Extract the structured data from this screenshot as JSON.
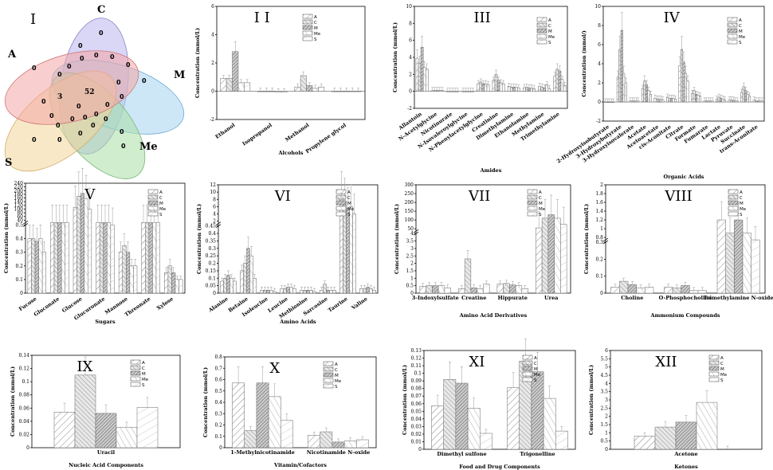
{
  "patterns": [
    "pa",
    "pc",
    "pm",
    "pme",
    "ps"
  ],
  "legend": [
    "A",
    "C",
    "M",
    "Me",
    "S"
  ],
  "venn": {
    "numeral": "I",
    "sets": [
      {
        "name": "A",
        "color": "#f4a6a6"
      },
      {
        "name": "C",
        "color": "#b9b4ee"
      },
      {
        "name": "M",
        "color": "#a6d3f0"
      },
      {
        "name": "Me",
        "color": "#a9dfa6"
      },
      {
        "name": "S",
        "color": "#f3d59a"
      }
    ],
    "center": "52",
    "three": "3",
    "zero": "0"
  },
  "chart_data": [
    {
      "id": "II",
      "type": "bar",
      "numeral": "I I",
      "xlabel": "Alcohols",
      "ylabel": "Concentration (mmol/L)",
      "ylim": [
        -2,
        6
      ],
      "yticks": [
        -2,
        0,
        2,
        4,
        6
      ],
      "categories": [
        "Ethanol",
        "Isopropanol",
        "Methanol",
        "Propylene glycol"
      ],
      "series": [
        {
          "name": "A",
          "values": [
            0.9,
            0.0,
            0.3,
            0.0
          ]
        },
        {
          "name": "C",
          "values": [
            0.9,
            0.0,
            1.1,
            0.0
          ]
        },
        {
          "name": "M",
          "values": [
            2.8,
            0.0,
            0.4,
            0.0
          ]
        },
        {
          "name": "Me",
          "values": [
            0.6,
            -0.05,
            0.2,
            0.0
          ]
        },
        {
          "name": "S",
          "values": [
            0.6,
            -0.05,
            0.3,
            0.0
          ]
        }
      ]
    },
    {
      "id": "III",
      "type": "bar",
      "numeral": "III",
      "xlabel": "Amides",
      "ylabel": "Concentration (mmol/L)",
      "ylim": [
        -2,
        10
      ],
      "yticks": [
        -2,
        0,
        2,
        4,
        6,
        8,
        10
      ],
      "categories": [
        "Allantoin",
        "N-Acetylglycine",
        "Nicotinurate",
        "N-Isovaleroylglycine",
        "N-Phenylacetylglycine",
        "Creatinine",
        "Dimethylamine",
        "Ethanolamine",
        "Methylamine",
        "Trimethylamine"
      ],
      "series": [
        {
          "name": "A",
          "values": [
            3.9,
            0.1,
            0.0,
            0.0,
            0.9,
            1.3,
            0.6,
            0.4,
            0.6,
            1.8
          ]
        },
        {
          "name": "C",
          "values": [
            3.3,
            0.1,
            0.0,
            0.0,
            1.1,
            2.0,
            0.5,
            0.5,
            0.5,
            2.6
          ]
        },
        {
          "name": "M",
          "values": [
            5.2,
            0.1,
            0.0,
            0.0,
            0.9,
            1.3,
            0.5,
            0.4,
            0.4,
            2.4
          ]
        },
        {
          "name": "Me",
          "values": [
            2.8,
            0.1,
            0.0,
            0.0,
            0.9,
            1.0,
            0.5,
            0.4,
            0.8,
            1.4
          ]
        },
        {
          "name": "S",
          "values": [
            2.6,
            0.1,
            0.0,
            0.0,
            0.8,
            0.9,
            0.4,
            0.3,
            0.3,
            0.7
          ]
        }
      ]
    },
    {
      "id": "IV",
      "type": "bar",
      "numeral": "IV",
      "xlabel": "Organic Acids",
      "ylabel": "Concentration (mmol/)",
      "ylim": [
        -2,
        10
      ],
      "yticks": [
        -2,
        0,
        2,
        4,
        6,
        8,
        10
      ],
      "categories": [
        "2-Hydroxyisobutyrate",
        "3-Hydroxybutyrate",
        "3-Hydroxyisovalerate",
        "Acetate",
        "Acetoacetate",
        "cis-Aconitate",
        "Citrate",
        "Formate",
        "Fumarate",
        "Lactate",
        "Pyruvate",
        "Succinate",
        "trans-Aconitate"
      ],
      "series": [
        {
          "name": "A",
          "values": [
            0.0,
            2.6,
            0.1,
            1.4,
            0.4,
            0.5,
            3.8,
            0.9,
            0.1,
            0.3,
            0.2,
            1.0,
            0.2
          ]
        },
        {
          "name": "C",
          "values": [
            0.0,
            5.5,
            0.1,
            2.2,
            0.3,
            0.4,
            5.5,
            1.2,
            0.1,
            0.5,
            0.2,
            1.6,
            0.1
          ]
        },
        {
          "name": "M",
          "values": [
            0.0,
            7.5,
            0.1,
            1.8,
            0.3,
            0.4,
            4.2,
            0.8,
            0.1,
            0.4,
            0.2,
            1.2,
            0.1
          ]
        },
        {
          "name": "Me",
          "values": [
            0.0,
            3.0,
            0.1,
            1.2,
            0.3,
            0.4,
            3.0,
            0.7,
            0.1,
            0.3,
            0.1,
            0.8,
            0.1
          ]
        },
        {
          "name": "S",
          "values": [
            0.0,
            2.0,
            0.1,
            0.8,
            0.2,
            0.3,
            2.2,
            0.6,
            0.1,
            0.2,
            0.1,
            0.6,
            0.1
          ]
        }
      ]
    },
    {
      "id": "V",
      "type": "bar",
      "numeral": "V",
      "xlabel": "Sugars",
      "ylabel": "Concentration (mmol/L)",
      "ylim": [
        0,
        240
      ],
      "yticks_upper": [
        40,
        60,
        80,
        100,
        120,
        140,
        160,
        180,
        200,
        220,
        240
      ],
      "yticks_lower": [
        0,
        0.1,
        0.2,
        0.3,
        0.4,
        0.5
      ],
      "categories": [
        "Fucose",
        "Gluconate",
        "Glucose",
        "Glucuronate",
        "Mannose",
        "Threonate",
        "Xylose"
      ],
      "series": [
        {
          "name": "A",
          "values": [
            0.4,
            25,
            110,
            0.75,
            0.3,
            0.95,
            0.15
          ]
        },
        {
          "name": "C",
          "values": [
            0.4,
            25,
            170,
            0.8,
            0.35,
            0.85,
            0.2
          ]
        },
        {
          "name": "M",
          "values": [
            0.38,
            25,
            185,
            1.6,
            0.3,
            0.9,
            0.15
          ]
        },
        {
          "name": "Me",
          "values": [
            0.4,
            25,
            155,
            0.6,
            0.2,
            1.0,
            0.1
          ]
        },
        {
          "name": "S",
          "values": [
            0.3,
            25,
            100,
            0.5,
            0.2,
            0.7,
            0.1
          ]
        }
      ]
    },
    {
      "id": "VI",
      "type": "bar",
      "numeral": "VI",
      "xlabel": "Amino Acids",
      "ylabel": "Concentration (mmol/L)",
      "ylim": [
        0,
        12
      ],
      "yticks_upper": [
        2,
        4,
        6,
        8,
        10,
        12
      ],
      "yticks_lower": [
        0,
        0.05,
        0.1,
        0.15,
        0.2,
        0.25,
        0.3,
        0.35,
        0.4,
        0.45
      ],
      "categories": [
        "Alanine",
        "Betaine",
        "Isoleucine",
        "Leucine",
        "Methionine",
        "Sarcosine",
        "Taurine",
        "Valine"
      ],
      "series": [
        {
          "name": "A",
          "values": [
            0.08,
            0.15,
            0.02,
            0.03,
            0.02,
            0.02,
            9,
            0.03
          ]
        },
        {
          "name": "C",
          "values": [
            0.1,
            0.2,
            0.02,
            0.03,
            0.02,
            0.06,
            7.5,
            0.03
          ]
        },
        {
          "name": "M",
          "values": [
            0.12,
            0.3,
            0.02,
            0.04,
            0.02,
            0.02,
            5.5,
            0.04
          ]
        },
        {
          "name": "Me",
          "values": [
            0.1,
            0.25,
            0.02,
            0.04,
            0.02,
            0.02,
            6,
            0.03
          ]
        },
        {
          "name": "S",
          "values": [
            0.08,
            0.1,
            0.01,
            0.03,
            0.01,
            0.02,
            4,
            0.02
          ]
        }
      ]
    },
    {
      "id": "VII",
      "type": "bar",
      "numeral": "VII",
      "xlabel": "Amino Acid Derivatives",
      "ylabel": "Concentration (mmol/L)",
      "ylim": [
        0,
        300
      ],
      "yticks_upper": [
        50,
        100,
        150,
        200,
        250,
        300
      ],
      "yticks_lower": [
        0,
        0.5,
        1,
        1.5,
        2,
        2.5,
        3,
        3.5,
        4
      ],
      "categories": [
        "3-Indoxylsulfate",
        "Creatine",
        "Hippurate",
        "Urea"
      ],
      "series": [
        {
          "name": "A",
          "values": [
            0.45,
            0.3,
            0.6,
            55
          ]
        },
        {
          "name": "C",
          "values": [
            0.5,
            2.3,
            0.65,
            110
          ]
        },
        {
          "name": "M",
          "values": [
            0.5,
            0.35,
            0.55,
            130
          ]
        },
        {
          "name": "Me",
          "values": [
            0.5,
            0.3,
            0.5,
            110
          ]
        },
        {
          "name": "S",
          "values": [
            0.35,
            0.6,
            0.3,
            75
          ]
        }
      ]
    },
    {
      "id": "VIII",
      "type": "bar",
      "numeral": "VIII",
      "xlabel": "Ammonium Compounds",
      "ylabel": "Concentration (mmol/L)",
      "ylim": [
        0,
        2.0
      ],
      "yticks_upper": [
        0.8,
        1.0,
        1.2,
        1.4,
        1.6,
        1.8,
        2.0
      ],
      "yticks_lower": [
        0,
        0.1,
        0.2,
        0.3
      ],
      "categories": [
        "Choline",
        "O-Phosphocholine",
        "Trimethylamine N-oxide"
      ],
      "series": [
        {
          "name": "A",
          "values": [
            0.035,
            0.035,
            1.2
          ]
        },
        {
          "name": "C",
          "values": [
            0.07,
            0.03,
            0.9
          ]
        },
        {
          "name": "M",
          "values": [
            0.05,
            0.045,
            1.2
          ]
        },
        {
          "name": "Me",
          "values": [
            0.03,
            0.015,
            0.9
          ]
        },
        {
          "name": "S",
          "values": [
            0.035,
            0.015,
            0.7
          ]
        }
      ]
    },
    {
      "id": "IX",
      "type": "bar",
      "numeral": "IX",
      "xlabel": "Nucleic Acid Components",
      "ylabel": "Concentration (mmol/L)",
      "ylim": [
        0,
        0.14
      ],
      "yticks": [
        0,
        0.02,
        0.04,
        0.06,
        0.08,
        0.1,
        0.12,
        0.14
      ],
      "categories": [
        "Uracil"
      ],
      "series": [
        {
          "name": "A",
          "values": [
            0.054
          ]
        },
        {
          "name": "C",
          "values": [
            0.11
          ]
        },
        {
          "name": "M",
          "values": [
            0.052
          ]
        },
        {
          "name": "Me",
          "values": [
            0.031
          ]
        },
        {
          "name": "S",
          "values": [
            0.061
          ]
        }
      ]
    },
    {
      "id": "X",
      "type": "bar",
      "numeral": "X",
      "xlabel": "Vitamin/Cofactors",
      "ylabel": "Concentration (mmol/L)",
      "ylim": [
        0,
        0.8
      ],
      "yticks": [
        0,
        0.1,
        0.2,
        0.3,
        0.4,
        0.5,
        0.6,
        0.7,
        0.8
      ],
      "categories": [
        "1-Methylnicotinamide",
        "Nicotinamide N-oxide"
      ],
      "series": [
        {
          "name": "A",
          "values": [
            0.57,
            0.11
          ]
        },
        {
          "name": "C",
          "values": [
            0.15,
            0.14
          ]
        },
        {
          "name": "M",
          "values": [
            0.57,
            0.05
          ]
        },
        {
          "name": "Me",
          "values": [
            0.45,
            0.06
          ]
        },
        {
          "name": "S",
          "values": [
            0.24,
            0.07
          ]
        }
      ]
    },
    {
      "id": "XI",
      "type": "bar",
      "numeral": "XI",
      "xlabel": "Food and Drug Components",
      "ylabel": "Concentration (mmol/L)",
      "ylim": [
        0,
        0.13
      ],
      "yticks": [
        0,
        0.01,
        0.02,
        0.03,
        0.04,
        0.05,
        0.06,
        0.07,
        0.08,
        0.09,
        0.1,
        0.11,
        0.12,
        0.13
      ],
      "categories": [
        "Dimethyl sulfone",
        "Trigonelline"
      ],
      "series": [
        {
          "name": "A",
          "values": [
            0.057,
            0.081
          ]
        },
        {
          "name": "C",
          "values": [
            0.092,
            0.116
          ]
        },
        {
          "name": "M",
          "values": [
            0.087,
            0.102
          ]
        },
        {
          "name": "Me",
          "values": [
            0.054,
            0.067
          ]
        },
        {
          "name": "S",
          "values": [
            0.021,
            0.024
          ]
        }
      ]
    },
    {
      "id": "XII",
      "type": "bar",
      "numeral": "XII",
      "xlabel": "Ketones",
      "ylabel": "Concentration (mmol/L)",
      "ylim": [
        0,
        6
      ],
      "yticks": [
        0,
        0.5,
        1,
        1.5,
        2,
        2.5,
        3,
        3.5,
        4,
        4.5,
        5,
        5.5,
        6
      ],
      "categories": [
        "Acetone"
      ],
      "series": [
        {
          "name": "A",
          "values": [
            0.8
          ]
        },
        {
          "name": "C",
          "values": [
            1.35
          ]
        },
        {
          "name": "M",
          "values": [
            1.65
          ]
        },
        {
          "name": "Me",
          "values": [
            2.85
          ]
        },
        {
          "name": "S",
          "values": [
            0
          ]
        }
      ]
    }
  ]
}
